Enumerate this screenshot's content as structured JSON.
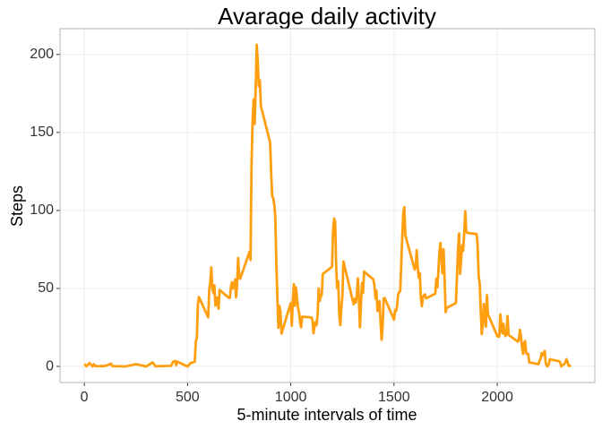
{
  "chart_data": {
    "type": "line",
    "title": "Avarage daily activity",
    "x_label": "5-minute intervals of time",
    "y_label": "Steps",
    "color": "#ff9f0f",
    "grid": true,
    "xlim": [
      -117.75,
      2472.75
    ],
    "ylim": [
      -10.3,
      216.5
    ],
    "xticks": [
      0,
      500,
      1000,
      1500,
      2000
    ],
    "yticks": [
      0,
      50,
      100,
      150,
      200
    ],
    "x": [
      0,
      10,
      25,
      40,
      45,
      55,
      100,
      130,
      135,
      200,
      250,
      300,
      330,
      345,
      420,
      430,
      440,
      445,
      450,
      500,
      515,
      535,
      540,
      545,
      550,
      555,
      600,
      605,
      610,
      615,
      620,
      625,
      630,
      635,
      640,
      645,
      650,
      655,
      700,
      705,
      710,
      715,
      720,
      725,
      730,
      735,
      740,
      745,
      750,
      755,
      800,
      805,
      810,
      815,
      820,
      825,
      830,
      835,
      840,
      845,
      850,
      855,
      900,
      905,
      910,
      915,
      920,
      925,
      930,
      935,
      940,
      945,
      950,
      955,
      1000,
      1005,
      1010,
      1015,
      1020,
      1025,
      1030,
      1035,
      1040,
      1045,
      1050,
      1055,
      1100,
      1105,
      1110,
      1115,
      1120,
      1125,
      1130,
      1135,
      1140,
      1145,
      1150,
      1155,
      1200,
      1205,
      1210,
      1215,
      1220,
      1225,
      1230,
      1235,
      1240,
      1245,
      1250,
      1255,
      1300,
      1305,
      1310,
      1315,
      1320,
      1325,
      1330,
      1335,
      1340,
      1345,
      1350,
      1355,
      1400,
      1405,
      1410,
      1415,
      1420,
      1425,
      1430,
      1435,
      1440,
      1445,
      1450,
      1455,
      1500,
      1505,
      1510,
      1515,
      1520,
      1525,
      1530,
      1535,
      1540,
      1545,
      1550,
      1555,
      1600,
      1605,
      1610,
      1615,
      1620,
      1625,
      1630,
      1635,
      1640,
      1645,
      1650,
      1655,
      1700,
      1705,
      1710,
      1715,
      1720,
      1725,
      1730,
      1735,
      1740,
      1745,
      1750,
      1755,
      1800,
      1805,
      1810,
      1815,
      1820,
      1825,
      1830,
      1835,
      1840,
      1845,
      1850,
      1855,
      1900,
      1905,
      1910,
      1915,
      1920,
      1925,
      1930,
      1935,
      1940,
      1945,
      1950,
      1955,
      2000,
      2005,
      2010,
      2015,
      2020,
      2025,
      2030,
      2035,
      2040,
      2045,
      2050,
      2055,
      2100,
      2105,
      2110,
      2115,
      2120,
      2125,
      2130,
      2135,
      2140,
      2145,
      2150,
      2155,
      2200,
      2205,
      2210,
      2215,
      2220,
      2225,
      2230,
      2235,
      2240,
      2245,
      2250,
      2255,
      2300,
      2305,
      2310,
      2315,
      2320,
      2325,
      2330,
      2335,
      2340,
      2345,
      2350,
      2355
    ],
    "values": [
      1.7,
      0.1,
      2.1,
      0,
      1.5,
      0.1,
      0.3,
      1.8,
      0.2,
      0,
      1.5,
      0,
      2.6,
      0.1,
      0.4,
      3.0,
      3.5,
      0.8,
      3.1,
      0,
      2.2,
      3.0,
      16,
      18,
      39.5,
      44.5,
      31.5,
      49.3,
      53.8,
      63.5,
      50,
      47,
      52,
      39,
      44,
      44,
      37,
      49,
      44,
      44,
      51,
      54,
      49.9,
      50.9,
      55.7,
      44.3,
      52.3,
      69.5,
      57.8,
      56.2,
      73.4,
      68.2,
      129.4,
      157.5,
      171.2,
      155.4,
      177.3,
      206.2,
      195.9,
      179.6,
      183.4,
      167.0,
      143.5,
      124.0,
      109.1,
      108.1,
      103.7,
      96.0,
      66.2,
      45.2,
      24.8,
      38.8,
      35.0,
      21.1,
      40.6,
      26.1,
      42.4,
      52.7,
      38.9,
      50.8,
      44.3,
      37.4,
      34.7,
      28.3,
      25.1,
      31.9,
      31.4,
      29.7,
      21.3,
      25.5,
      28.4,
      26.5,
      33.4,
      50.0,
      42.0,
      44.6,
      46.0,
      59.2,
      63.9,
      87.7,
      94.8,
      92.8,
      63.4,
      50.2,
      54.5,
      32.4,
      26.5,
      37.7,
      45.1,
      67.3,
      42.3,
      39.9,
      43.3,
      41.0,
      46.2,
      56.4,
      42.8,
      25.1,
      40.0,
      53.5,
      47.3,
      60.8,
      55.8,
      52.0,
      43.6,
      48.7,
      35.5,
      37.5,
      41.8,
      27.5,
      17.1,
      26.1,
      43.6,
      43.8,
      30.0,
      36.1,
      35.5,
      38.8,
      46.0,
      47.8,
      48.1,
      65.3,
      82.9,
      98.7,
      102.1,
      84.0,
      62.1,
      64.1,
      74.5,
      63.2,
      56.9,
      59.8,
      43.9,
      38.6,
      44.7,
      45.5,
      46.2,
      43.7,
      46.6,
      56.3,
      50.7,
      61.2,
      73.4,
      79.1,
      68.9,
      59.7,
      75.1,
      56.5,
      34.8,
      37.5,
      40.7,
      58.0,
      74.7,
      85.3,
      59.3,
      67.8,
      77.7,
      74.2,
      85.3,
      99.5,
      86.6,
      85.6,
      84.9,
      77.8,
      58.0,
      53.4,
      36.3,
      20.7,
      27.4,
      40.0,
      30.2,
      25.5,
      45.7,
      33.5,
      19.6,
      19.0,
      19.3,
      33.3,
      26.8,
      21.2,
      27.3,
      21.3,
      19.5,
      21.3,
      32.3,
      20.2,
      15.9,
      17.2,
      23.5,
      19.2,
      12.5,
      8.0,
      14.7,
      16.3,
      8.7,
      7.8,
      8.1,
      2.6,
      1.5,
      3.7,
      4.8,
      8.5,
      7.1,
      8.7,
      9.8,
      2.2,
      0.3,
      0.1,
      1.6,
      4.6,
      3.3,
      2.8,
      0,
      0.8,
      1.0,
      1.6,
      2.6,
      4.7,
      3.3,
      0.6,
      0.2,
      1.1
    ]
  }
}
